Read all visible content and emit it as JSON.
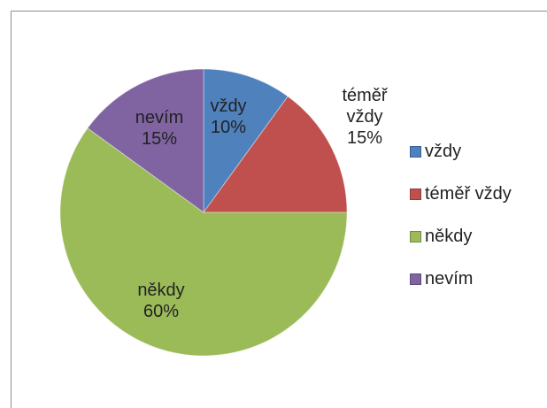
{
  "chart_data": {
    "type": "pie",
    "categories": [
      "vždy",
      "téměř vždy",
      "někdy",
      "nevím"
    ],
    "values": [
      10,
      15,
      60,
      15
    ],
    "value_labels": [
      "10%",
      "15%",
      "60%",
      "15%"
    ],
    "colors": [
      "#4f81bd",
      "#c0504d",
      "#9bbb59",
      "#8064a2"
    ],
    "legend": "right"
  }
}
